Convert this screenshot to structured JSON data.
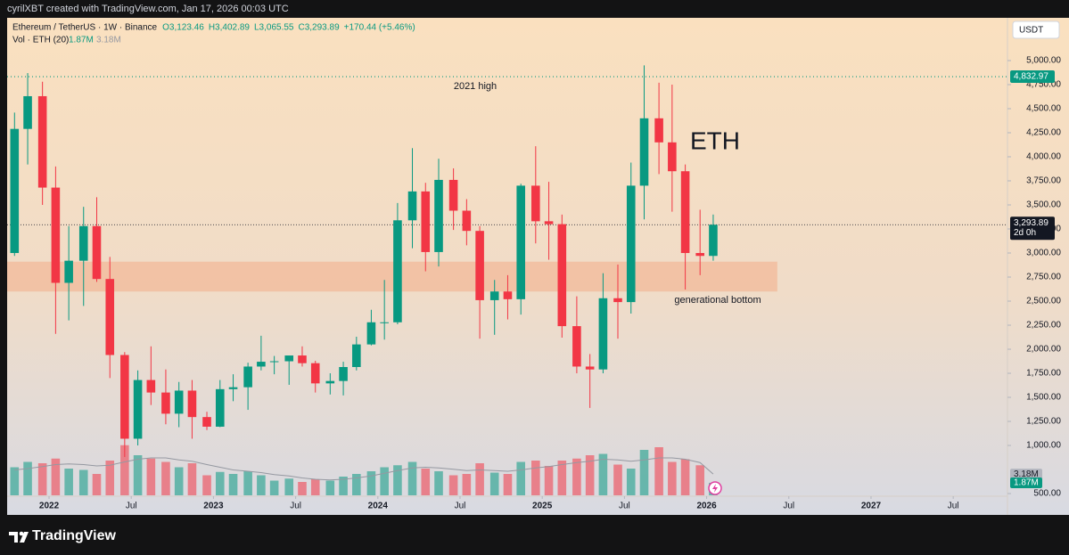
{
  "attribution": "cyrilXBT created with TradingView.com, Jan 17, 2026 00:03 UTC",
  "footer": {
    "brand": "TradingView"
  },
  "chart_data": {
    "type": "candlestick",
    "title": "Ethereum / TetherUS · 1W · Binance",
    "ohlc": [
      "O3,123.46",
      "H3,402.89",
      "L3,065.55",
      "C3,293.89",
      "+170.44 (+5.46%)"
    ],
    "volume_title": "Vol · ETH (20)",
    "volume_legend": [
      "1.87M",
      "3.18M"
    ],
    "currency": "USDT",
    "annotations": [
      "2021 high",
      "ETH",
      "generational bottom"
    ],
    "up_color": "#089981",
    "down_color": "#f23645",
    "zone": {
      "low": 2600,
      "high": 2910,
      "end": 2026.43,
      "color": "#f2b999"
    },
    "high_line": {
      "value": 4832.97,
      "label": "4,832.97",
      "color": "#089981"
    },
    "last_price": {
      "value": 3293.89,
      "label": "3,293.89",
      "countdown": "2d 0h"
    },
    "xlim": [
      2021.745,
      2027.83
    ],
    "ylim": [
      278,
      5426
    ],
    "xticks": [
      2022,
      {
        "value": 2022.5,
        "label": "Jul"
      },
      2023,
      {
        "value": 2023.5,
        "label": "Jul"
      },
      2024,
      {
        "value": 2024.5,
        "label": "Jul"
      },
      2025,
      {
        "value": 2025.5,
        "label": "Jul"
      },
      2026,
      {
        "value": 2026.5,
        "label": "Jul"
      },
      2027,
      {
        "value": 2027.5,
        "label": "Jul"
      }
    ],
    "yticks": [
      {
        "value": 500,
        "label": "500.00"
      },
      {
        "value": 1000,
        "label": "1,000.00"
      },
      {
        "value": 1250,
        "label": "1,250.00"
      },
      {
        "value": 1500,
        "label": "1,500.00"
      },
      {
        "value": 1750,
        "label": "1,750.00"
      },
      {
        "value": 2000,
        "label": "2,000.00"
      },
      {
        "value": 2250,
        "label": "2,250.00"
      },
      {
        "value": 2500,
        "label": "2,500.00"
      },
      {
        "value": 2750,
        "label": "2,750.00"
      },
      {
        "value": 3000,
        "label": "3,000.00"
      },
      {
        "value": 3250,
        "label": "3,250.00"
      },
      {
        "value": 3500,
        "label": "3,500.00"
      },
      {
        "value": 3750,
        "label": "3,750.00"
      },
      {
        "value": 4000,
        "label": "4,000.00"
      },
      {
        "value": 4250,
        "label": "4,250.00"
      },
      {
        "value": 4500,
        "label": "4,500.00"
      },
      {
        "value": 4750,
        "label": "4,750.00"
      },
      {
        "value": 5000,
        "label": "5,000.00"
      }
    ],
    "x": [
      2021.79,
      2021.87,
      2021.96,
      2022.04,
      2022.12,
      2022.21,
      2022.29,
      2022.37,
      2022.46,
      2022.54,
      2022.62,
      2022.71,
      2022.79,
      2022.87,
      2022.96,
      2023.04,
      2023.12,
      2023.21,
      2023.29,
      2023.37,
      2023.46,
      2023.54,
      2023.62,
      2023.71,
      2023.79,
      2023.87,
      2023.96,
      2024.04,
      2024.12,
      2024.21,
      2024.29,
      2024.37,
      2024.46,
      2024.54,
      2024.62,
      2024.71,
      2024.79,
      2024.87,
      2024.96,
      2025.04,
      2025.12,
      2025.21,
      2025.29,
      2025.37,
      2025.46,
      2025.54,
      2025.62,
      2025.71,
      2025.79,
      2025.87,
      2025.96,
      2026.04
    ],
    "open": [
      3000,
      4290,
      4630,
      3680,
      2690,
      2920,
      3280,
      2730,
      1940,
      1070,
      1680,
      1550,
      1330,
      1570,
      1295,
      1195,
      1585,
      1605,
      1820,
      1870,
      1875,
      1935,
      1855,
      1645,
      1670,
      1815,
      2050,
      2280,
      2280,
      3340,
      3640,
      3010,
      3760,
      3440,
      3230,
      2510,
      2600,
      2520,
      3700,
      3330,
      3300,
      2240,
      1820,
      1790,
      2530,
      2490,
      3700,
      4400,
      4150,
      3850,
      3000,
      2970
    ],
    "high": [
      4460,
      4870,
      4780,
      3900,
      3280,
      3480,
      3580,
      2960,
      1970,
      1780,
      2030,
      1790,
      1660,
      1680,
      1350,
      1680,
      1740,
      1860,
      2140,
      1930,
      1930,
      2030,
      1880,
      1750,
      1870,
      2130,
      2410,
      2720,
      3520,
      4090,
      3730,
      3980,
      3880,
      3560,
      3280,
      2720,
      2770,
      3720,
      4110,
      3740,
      3400,
      2550,
      1950,
      2790,
      2880,
      3940,
      4950,
      4770,
      4750,
      3920,
      3450,
      3400
    ],
    "low": [
      2970,
      3920,
      3500,
      2160,
      2300,
      2450,
      2700,
      1700,
      880,
      1000,
      1420,
      1220,
      1190,
      1070,
      1160,
      1190,
      1460,
      1370,
      1780,
      1740,
      1630,
      1820,
      1550,
      1530,
      1520,
      1780,
      2040,
      2100,
      2260,
      3050,
      2810,
      2860,
      3240,
      3080,
      2110,
      2150,
      2310,
      2360,
      3100,
      2930,
      2120,
      1750,
      1390,
      1750,
      2110,
      2370,
      3350,
      3820,
      3430,
      2620,
      2770,
      2920
    ],
    "close": [
      4290,
      4630,
      3680,
      2690,
      2920,
      3280,
      2730,
      1940,
      1070,
      1680,
      1550,
      1330,
      1570,
      1295,
      1195,
      1585,
      1605,
      1820,
      1870,
      1875,
      1935,
      1855,
      1645,
      1670,
      1815,
      2050,
      2280,
      2280,
      3340,
      3640,
      3010,
      3760,
      3440,
      3230,
      2510,
      2600,
      2520,
      3700,
      3330,
      3300,
      2240,
      1820,
      1790,
      2530,
      2490,
      3700,
      4400,
      4150,
      3850,
      3000,
      2970,
      3294
    ],
    "volume": [
      4.2,
      5.0,
      4.8,
      5.5,
      4.0,
      3.8,
      3.2,
      5.2,
      7.5,
      6.0,
      5.5,
      5.0,
      4.2,
      4.8,
      3.0,
      3.5,
      3.2,
      3.6,
      3.0,
      2.2,
      2.5,
      2.0,
      2.4,
      2.2,
      2.8,
      3.2,
      3.6,
      4.2,
      4.5,
      5.0,
      4.0,
      3.6,
      3.0,
      3.2,
      4.8,
      3.4,
      3.2,
      5.0,
      5.2,
      4.4,
      5.2,
      5.5,
      6.0,
      6.2,
      4.6,
      4.0,
      6.8,
      7.2,
      5.0,
      5.4,
      4.5,
      1.87
    ],
    "volume_ma": [
      3.8,
      4.0,
      4.3,
      4.6,
      4.7,
      4.6,
      4.4,
      4.5,
      5.0,
      5.4,
      5.6,
      5.6,
      5.3,
      5.1,
      4.6,
      4.2,
      3.8,
      3.6,
      3.4,
      3.1,
      2.9,
      2.6,
      2.4,
      2.3,
      2.4,
      2.6,
      2.9,
      3.3,
      3.7,
      4.1,
      4.2,
      4.1,
      3.9,
      3.7,
      3.8,
      3.7,
      3.6,
      3.8,
      4.1,
      4.3,
      4.6,
      4.9,
      5.1,
      5.4,
      5.3,
      5.1,
      5.3,
      5.6,
      5.6,
      5.4,
      4.9,
      3.18
    ],
    "volume_lim": [
      0,
      10
    ],
    "volume_ma_color": "#9598a1"
  }
}
